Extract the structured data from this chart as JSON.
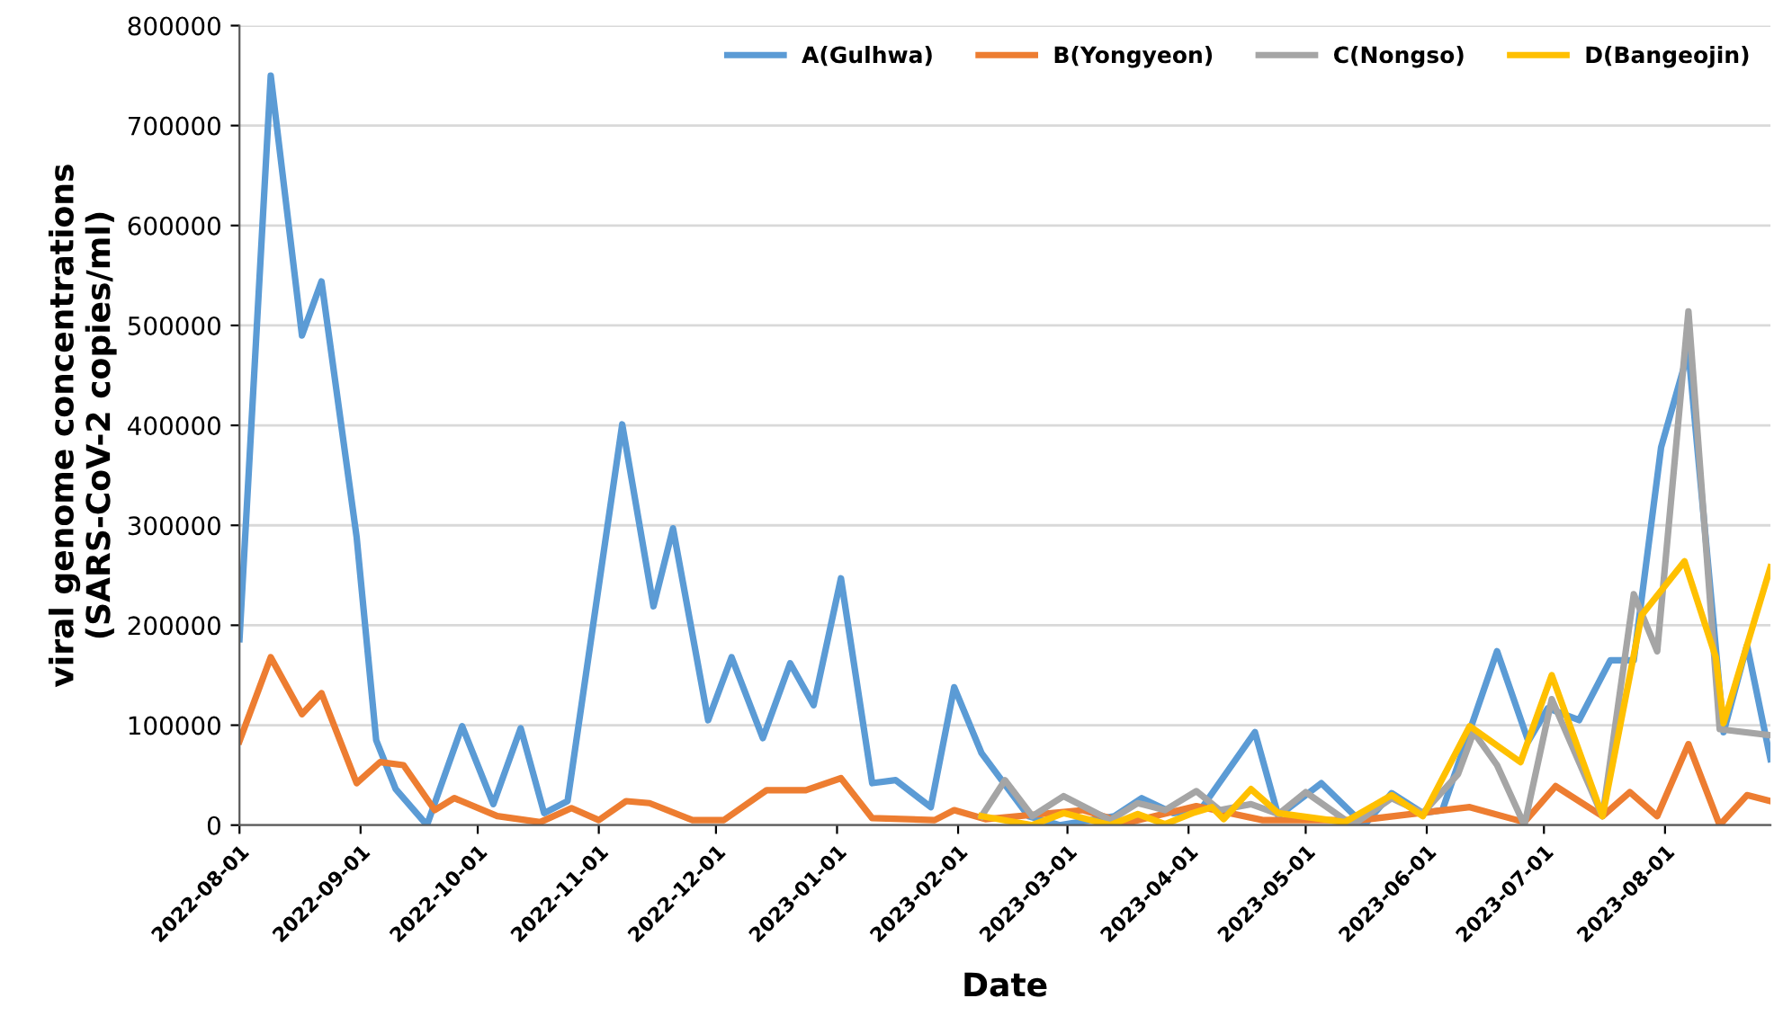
{
  "chart_data": {
    "type": "line",
    "xlabel": "Date",
    "ylabel": "viral genome concentrations\n(SARS-CoV-2 copies/ml)",
    "xlim": [
      "2022-08-01",
      "2023-08-28"
    ],
    "xticks": [
      "2022-08-01",
      "2022-09-01",
      "2022-10-01",
      "2022-11-01",
      "2022-12-01",
      "2023-01-01",
      "2023-02-01",
      "2023-03-01",
      "2023-04-01",
      "2023-05-01",
      "2023-06-01",
      "2023-07-01",
      "2023-08-01"
    ],
    "ylim": [
      0,
      800000
    ],
    "yticks": [
      0,
      100000,
      200000,
      300000,
      400000,
      500000,
      600000,
      700000,
      800000
    ],
    "grid": "y",
    "legend": "top right",
    "marker": "none",
    "line_style": "solid",
    "series": [
      {
        "name": "A(Gulhwa)",
        "color": "#5b9bd5",
        "x": [
          "2022-08-01",
          "2022-08-09",
          "2022-08-17",
          "2022-08-22",
          "2022-08-31",
          "2022-09-05",
          "2022-09-10",
          "2022-09-18",
          "2022-09-27",
          "2022-10-05",
          "2022-10-12",
          "2022-10-18",
          "2022-10-24",
          "2022-11-07",
          "2022-11-15",
          "2022-11-20",
          "2022-11-29",
          "2022-12-05",
          "2022-12-13",
          "2022-12-20",
          "2022-12-26",
          "2023-01-02",
          "2023-01-10",
          "2023-01-16",
          "2023-01-25",
          "2023-01-31",
          "2023-02-07",
          "2023-02-19",
          "2023-02-27",
          "2023-03-13",
          "2023-03-20",
          "2023-03-28",
          "2023-04-04",
          "2023-04-18",
          "2023-04-24",
          "2023-05-05",
          "2023-05-16",
          "2023-05-23",
          "2023-05-31",
          "2023-06-05",
          "2023-06-19",
          "2023-06-27",
          "2023-07-02",
          "2023-07-10",
          "2023-07-18",
          "2023-07-24",
          "2023-07-31",
          "2023-08-07",
          "2023-08-16",
          "2023-08-22",
          "2023-08-28"
        ],
        "values": [
          186000,
          750000,
          490000,
          544000,
          288000,
          85000,
          36000,
          0,
          99000,
          21000,
          97000,
          12000,
          24000,
          401000,
          219000,
          297000,
          105000,
          168000,
          87000,
          162000,
          120000,
          247000,
          42000,
          45000,
          18000,
          138000,
          72000,
          9000,
          0,
          9000,
          27000,
          12000,
          15000,
          93000,
          9000,
          42000,
          0,
          32000,
          12000,
          15000,
          174000,
          84000,
          117000,
          105000,
          165000,
          165000,
          378000,
          474000,
          93000,
          180000,
          66000
        ]
      },
      {
        "name": "B(Yongyeon)",
        "color": "#ed7d31",
        "x": [
          "2022-08-01",
          "2022-08-09",
          "2022-08-17",
          "2022-08-22",
          "2022-08-31",
          "2022-09-06",
          "2022-09-12",
          "2022-09-20",
          "2022-09-25",
          "2022-10-06",
          "2022-10-17",
          "2022-10-25",
          "2022-11-01",
          "2022-11-08",
          "2022-11-14",
          "2022-11-25",
          "2022-12-03",
          "2022-12-14",
          "2022-12-24",
          "2023-01-02",
          "2023-01-10",
          "2023-01-26",
          "2023-01-31",
          "2023-02-08",
          "2023-03-05",
          "2023-03-16",
          "2023-04-03",
          "2023-04-20",
          "2023-05-15",
          "2023-06-12",
          "2023-06-26",
          "2023-07-04",
          "2023-07-16",
          "2023-07-23",
          "2023-07-30",
          "2023-08-07",
          "2023-08-15",
          "2023-08-22",
          "2023-08-28"
        ],
        "values": [
          84000,
          168000,
          111000,
          132000,
          42000,
          63000,
          60000,
          15000,
          27000,
          9000,
          3000,
          17000,
          5000,
          24000,
          22000,
          5000,
          5000,
          35000,
          35000,
          47000,
          7000,
          5000,
          15000,
          6000,
          15000,
          2000,
          19000,
          5000,
          5000,
          18000,
          3000,
          39000,
          9000,
          33000,
          9000,
          81000,
          0,
          30000,
          24000
        ]
      },
      {
        "name": "C(Nongso)",
        "color": "#a5a5a5",
        "x": [
          "2023-02-07",
          "2023-02-13",
          "2023-02-20",
          "2023-02-28",
          "2023-03-12",
          "2023-03-19",
          "2023-03-26",
          "2023-04-03",
          "2023-04-09",
          "2023-04-17",
          "2023-04-24",
          "2023-05-01",
          "2023-05-13",
          "2023-05-23",
          "2023-05-31",
          "2023-06-09",
          "2023-06-13",
          "2023-06-19",
          "2023-06-26",
          "2023-07-03",
          "2023-07-16",
          "2023-07-24",
          "2023-07-30",
          "2023-08-07",
          "2023-08-15",
          "2023-08-28"
        ],
        "values": [
          9000,
          45000,
          9000,
          29000,
          5000,
          22000,
          15000,
          34000,
          15000,
          21000,
          11000,
          33000,
          0,
          27000,
          12000,
          51000,
          93000,
          60000,
          0,
          126000,
          9000,
          231000,
          174000,
          514000,
          96000,
          90000
        ]
      },
      {
        "name": "D(Bangeojin)",
        "color": "#ffc000",
        "x": [
          "2023-02-07",
          "2023-02-20",
          "2023-02-28",
          "2023-03-12",
          "2023-03-19",
          "2023-03-26",
          "2023-04-02",
          "2023-04-07",
          "2023-04-10",
          "2023-04-17",
          "2023-04-24",
          "2023-05-11",
          "2023-05-23",
          "2023-05-31",
          "2023-06-12",
          "2023-06-25",
          "2023-07-03",
          "2023-07-16",
          "2023-07-26",
          "2023-08-06",
          "2023-08-14",
          "2023-08-16",
          "2023-08-28"
        ],
        "values": [
          9000,
          0,
          12000,
          0,
          11000,
          1000,
          12000,
          18000,
          6000,
          36000,
          12000,
          3000,
          30000,
          9000,
          99000,
          63000,
          150000,
          9000,
          210000,
          264000,
          168000,
          102000,
          258000
        ]
      }
    ]
  }
}
